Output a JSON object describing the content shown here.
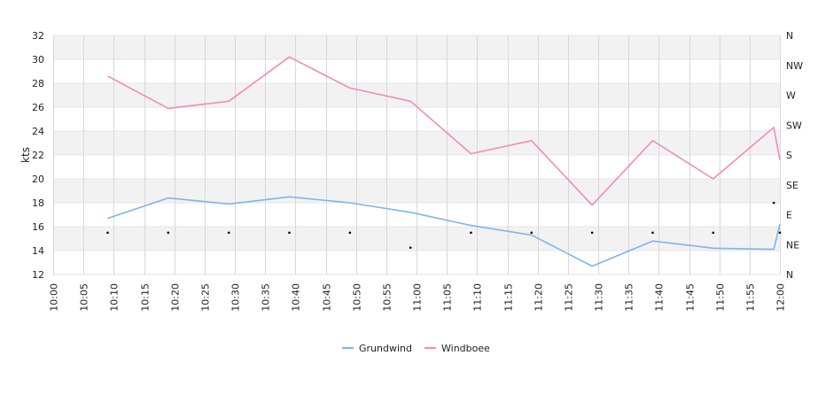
{
  "chart_data": {
    "type": "line",
    "title": "",
    "ylabel": "kts",
    "ylim": [
      12,
      32
    ],
    "yticks": [
      12,
      14,
      16,
      18,
      20,
      22,
      24,
      26,
      28,
      30,
      32
    ],
    "xlim": [
      "10:00",
      "12:00"
    ],
    "xticks": [
      "10:00",
      "10:05",
      "10:10",
      "10:15",
      "10:20",
      "10:25",
      "10:30",
      "10:35",
      "10:40",
      "10:45",
      "10:50",
      "10:55",
      "11:00",
      "11:05",
      "11:10",
      "11:15",
      "11:20",
      "11:25",
      "11:30",
      "11:35",
      "11:40",
      "11:45",
      "11:50",
      "11:55",
      "12:00"
    ],
    "y2ticks": [
      "N",
      "NE",
      "E",
      "SE",
      "S",
      "SW",
      "W",
      "NW",
      "N"
    ],
    "series": [
      {
        "name": "Grundwind",
        "color": "#7cb5ec",
        "x": [
          "10:09",
          "10:19",
          "10:29",
          "10:39",
          "10:49",
          "10:59",
          "11:09",
          "11:19",
          "11:29",
          "11:39",
          "11:49",
          "11:59",
          "12:00"
        ],
        "values": [
          16.7,
          18.4,
          17.9,
          18.5,
          18.0,
          17.2,
          16.1,
          15.3,
          12.7,
          14.8,
          14.2,
          14.1,
          16.2
        ]
      },
      {
        "name": "Windboee",
        "color": "#f08db7",
        "x": [
          "10:09",
          "10:19",
          "10:29",
          "10:39",
          "10:49",
          "10:59",
          "11:09",
          "11:19",
          "11:29",
          "11:39",
          "11:49",
          "11:59",
          "12:00"
        ],
        "values": [
          28.6,
          25.9,
          26.5,
          30.2,
          27.6,
          26.5,
          22.1,
          23.2,
          17.8,
          23.2,
          20.0,
          24.3,
          21.6
        ]
      }
    ],
    "direction": {
      "x": [
        "10:09",
        "10:19",
        "10:29",
        "10:39",
        "10:49",
        "10:59",
        "11:09",
        "11:19",
        "11:29",
        "11:39",
        "11:49",
        "11:59",
        "12:00"
      ],
      "values": [
        "NE",
        "NE",
        "NE",
        "NE",
        "NE",
        "NNE",
        "NE",
        "NE",
        "NE",
        "NE",
        "NE",
        "E",
        "NE"
      ]
    },
    "grid": true,
    "legend": "bottom-center"
  }
}
